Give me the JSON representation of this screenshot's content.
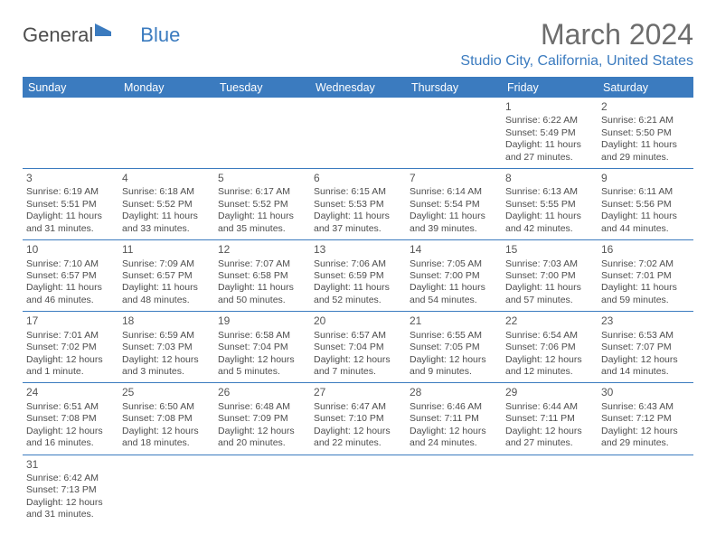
{
  "logo": {
    "text1": "General",
    "text2": "Blue"
  },
  "title": "March 2024",
  "location": "Studio City, California, United States",
  "day_headers": [
    "Sunday",
    "Monday",
    "Tuesday",
    "Wednesday",
    "Thursday",
    "Friday",
    "Saturday"
  ],
  "colors": {
    "accent": "#3b7bbf",
    "text": "#4d4d4d",
    "header_bg": "#3b7bbf",
    "header_text": "#ffffff"
  },
  "fonts": {
    "title_pt": 32,
    "location_pt": 16,
    "day_header_pt": 12.5,
    "cell_pt": 10.5
  },
  "weeks": [
    [
      {
        "day": "",
        "sunrise": "",
        "sunset": "",
        "daylight": ""
      },
      {
        "day": "",
        "sunrise": "",
        "sunset": "",
        "daylight": ""
      },
      {
        "day": "",
        "sunrise": "",
        "sunset": "",
        "daylight": ""
      },
      {
        "day": "",
        "sunrise": "",
        "sunset": "",
        "daylight": ""
      },
      {
        "day": "",
        "sunrise": "",
        "sunset": "",
        "daylight": ""
      },
      {
        "day": "1",
        "sunrise": "Sunrise: 6:22 AM",
        "sunset": "Sunset: 5:49 PM",
        "daylight": "Daylight: 11 hours and 27 minutes."
      },
      {
        "day": "2",
        "sunrise": "Sunrise: 6:21 AM",
        "sunset": "Sunset: 5:50 PM",
        "daylight": "Daylight: 11 hours and 29 minutes."
      }
    ],
    [
      {
        "day": "3",
        "sunrise": "Sunrise: 6:19 AM",
        "sunset": "Sunset: 5:51 PM",
        "daylight": "Daylight: 11 hours and 31 minutes."
      },
      {
        "day": "4",
        "sunrise": "Sunrise: 6:18 AM",
        "sunset": "Sunset: 5:52 PM",
        "daylight": "Daylight: 11 hours and 33 minutes."
      },
      {
        "day": "5",
        "sunrise": "Sunrise: 6:17 AM",
        "sunset": "Sunset: 5:52 PM",
        "daylight": "Daylight: 11 hours and 35 minutes."
      },
      {
        "day": "6",
        "sunrise": "Sunrise: 6:15 AM",
        "sunset": "Sunset: 5:53 PM",
        "daylight": "Daylight: 11 hours and 37 minutes."
      },
      {
        "day": "7",
        "sunrise": "Sunrise: 6:14 AM",
        "sunset": "Sunset: 5:54 PM",
        "daylight": "Daylight: 11 hours and 39 minutes."
      },
      {
        "day": "8",
        "sunrise": "Sunrise: 6:13 AM",
        "sunset": "Sunset: 5:55 PM",
        "daylight": "Daylight: 11 hours and 42 minutes."
      },
      {
        "day": "9",
        "sunrise": "Sunrise: 6:11 AM",
        "sunset": "Sunset: 5:56 PM",
        "daylight": "Daylight: 11 hours and 44 minutes."
      }
    ],
    [
      {
        "day": "10",
        "sunrise": "Sunrise: 7:10 AM",
        "sunset": "Sunset: 6:57 PM",
        "daylight": "Daylight: 11 hours and 46 minutes."
      },
      {
        "day": "11",
        "sunrise": "Sunrise: 7:09 AM",
        "sunset": "Sunset: 6:57 PM",
        "daylight": "Daylight: 11 hours and 48 minutes."
      },
      {
        "day": "12",
        "sunrise": "Sunrise: 7:07 AM",
        "sunset": "Sunset: 6:58 PM",
        "daylight": "Daylight: 11 hours and 50 minutes."
      },
      {
        "day": "13",
        "sunrise": "Sunrise: 7:06 AM",
        "sunset": "Sunset: 6:59 PM",
        "daylight": "Daylight: 11 hours and 52 minutes."
      },
      {
        "day": "14",
        "sunrise": "Sunrise: 7:05 AM",
        "sunset": "Sunset: 7:00 PM",
        "daylight": "Daylight: 11 hours and 54 minutes."
      },
      {
        "day": "15",
        "sunrise": "Sunrise: 7:03 AM",
        "sunset": "Sunset: 7:00 PM",
        "daylight": "Daylight: 11 hours and 57 minutes."
      },
      {
        "day": "16",
        "sunrise": "Sunrise: 7:02 AM",
        "sunset": "Sunset: 7:01 PM",
        "daylight": "Daylight: 11 hours and 59 minutes."
      }
    ],
    [
      {
        "day": "17",
        "sunrise": "Sunrise: 7:01 AM",
        "sunset": "Sunset: 7:02 PM",
        "daylight": "Daylight: 12 hours and 1 minute."
      },
      {
        "day": "18",
        "sunrise": "Sunrise: 6:59 AM",
        "sunset": "Sunset: 7:03 PM",
        "daylight": "Daylight: 12 hours and 3 minutes."
      },
      {
        "day": "19",
        "sunrise": "Sunrise: 6:58 AM",
        "sunset": "Sunset: 7:04 PM",
        "daylight": "Daylight: 12 hours and 5 minutes."
      },
      {
        "day": "20",
        "sunrise": "Sunrise: 6:57 AM",
        "sunset": "Sunset: 7:04 PM",
        "daylight": "Daylight: 12 hours and 7 minutes."
      },
      {
        "day": "21",
        "sunrise": "Sunrise: 6:55 AM",
        "sunset": "Sunset: 7:05 PM",
        "daylight": "Daylight: 12 hours and 9 minutes."
      },
      {
        "day": "22",
        "sunrise": "Sunrise: 6:54 AM",
        "sunset": "Sunset: 7:06 PM",
        "daylight": "Daylight: 12 hours and 12 minutes."
      },
      {
        "day": "23",
        "sunrise": "Sunrise: 6:53 AM",
        "sunset": "Sunset: 7:07 PM",
        "daylight": "Daylight: 12 hours and 14 minutes."
      }
    ],
    [
      {
        "day": "24",
        "sunrise": "Sunrise: 6:51 AM",
        "sunset": "Sunset: 7:08 PM",
        "daylight": "Daylight: 12 hours and 16 minutes."
      },
      {
        "day": "25",
        "sunrise": "Sunrise: 6:50 AM",
        "sunset": "Sunset: 7:08 PM",
        "daylight": "Daylight: 12 hours and 18 minutes."
      },
      {
        "day": "26",
        "sunrise": "Sunrise: 6:48 AM",
        "sunset": "Sunset: 7:09 PM",
        "daylight": "Daylight: 12 hours and 20 minutes."
      },
      {
        "day": "27",
        "sunrise": "Sunrise: 6:47 AM",
        "sunset": "Sunset: 7:10 PM",
        "daylight": "Daylight: 12 hours and 22 minutes."
      },
      {
        "day": "28",
        "sunrise": "Sunrise: 6:46 AM",
        "sunset": "Sunset: 7:11 PM",
        "daylight": "Daylight: 12 hours and 24 minutes."
      },
      {
        "day": "29",
        "sunrise": "Sunrise: 6:44 AM",
        "sunset": "Sunset: 7:11 PM",
        "daylight": "Daylight: 12 hours and 27 minutes."
      },
      {
        "day": "30",
        "sunrise": "Sunrise: 6:43 AM",
        "sunset": "Sunset: 7:12 PM",
        "daylight": "Daylight: 12 hours and 29 minutes."
      }
    ],
    [
      {
        "day": "31",
        "sunrise": "Sunrise: 6:42 AM",
        "sunset": "Sunset: 7:13 PM",
        "daylight": "Daylight: 12 hours and 31 minutes."
      },
      {
        "day": "",
        "sunrise": "",
        "sunset": "",
        "daylight": ""
      },
      {
        "day": "",
        "sunrise": "",
        "sunset": "",
        "daylight": ""
      },
      {
        "day": "",
        "sunrise": "",
        "sunset": "",
        "daylight": ""
      },
      {
        "day": "",
        "sunrise": "",
        "sunset": "",
        "daylight": ""
      },
      {
        "day": "",
        "sunrise": "",
        "sunset": "",
        "daylight": ""
      },
      {
        "day": "",
        "sunrise": "",
        "sunset": "",
        "daylight": ""
      }
    ]
  ]
}
